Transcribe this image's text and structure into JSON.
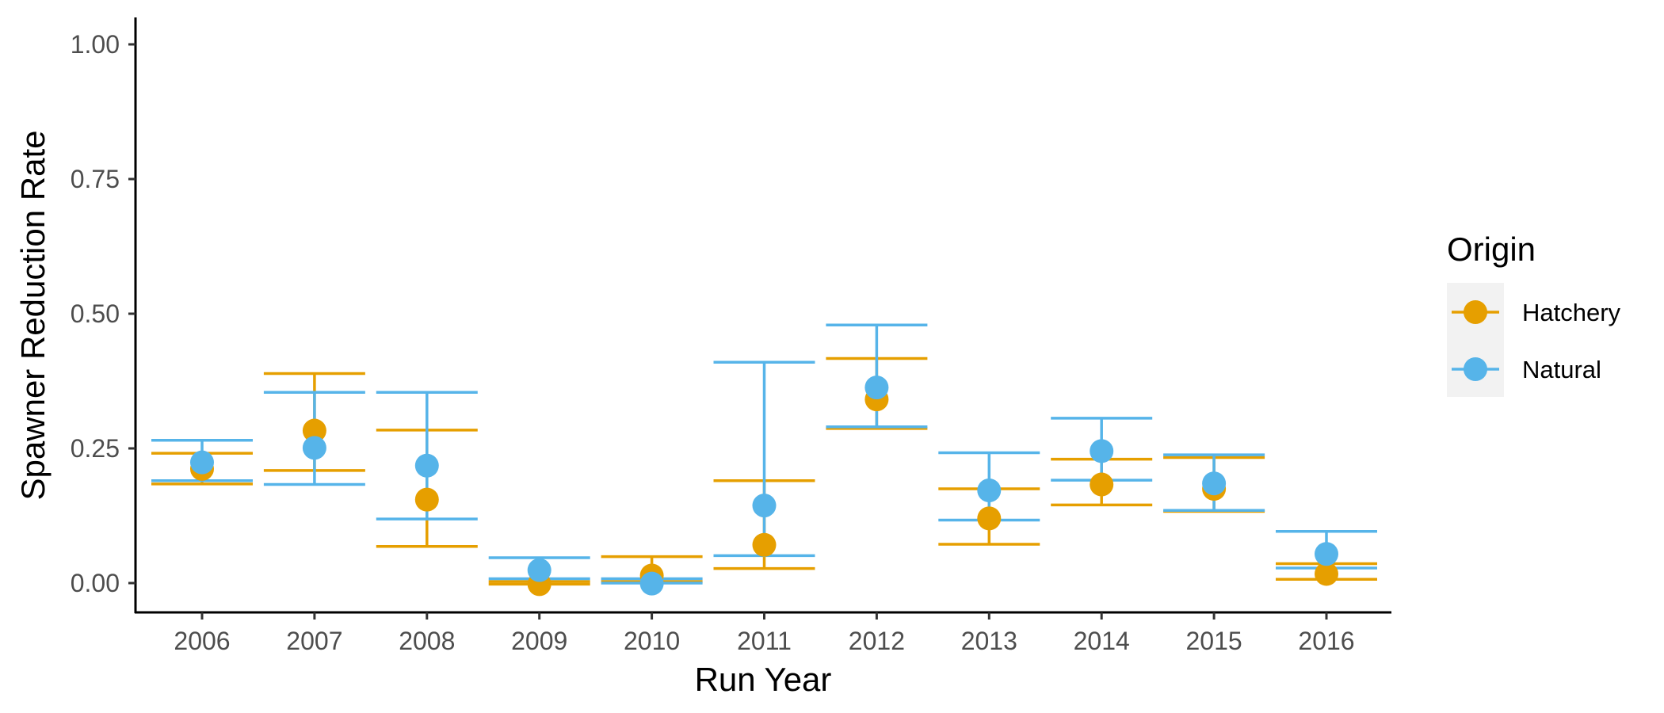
{
  "chart_data": {
    "type": "scatter",
    "title": "",
    "xlabel": "Run Year",
    "ylabel": "Spawner Reduction Rate",
    "categories": [
      "2006",
      "2007",
      "2008",
      "2009",
      "2010",
      "2011",
      "2012",
      "2013",
      "2014",
      "2015",
      "2016"
    ],
    "ylim": [
      -0.05,
      1.05
    ],
    "yticks": [
      0.0,
      0.25,
      0.5,
      0.75,
      1.0
    ],
    "ytick_labels": [
      "0.00",
      "0.25",
      "0.50",
      "0.75",
      "1.00"
    ],
    "grid": false,
    "error_bars": true,
    "legend": {
      "title": "Origin",
      "position": "right"
    },
    "series": [
      {
        "name": "Hatchery",
        "color": "#E69F00",
        "values": [
          0.212,
          0.283,
          0.155,
          -0.002,
          0.014,
          0.071,
          0.341,
          0.12,
          0.183,
          0.175,
          0.017
        ],
        "lower": [
          0.184,
          0.209,
          0.068,
          -0.002,
          0.003,
          0.027,
          0.287,
          0.072,
          0.145,
          0.133,
          0.007
        ],
        "upper": [
          0.241,
          0.389,
          0.284,
          0.003,
          0.049,
          0.19,
          0.417,
          0.175,
          0.23,
          0.233,
          0.036
        ]
      },
      {
        "name": "Natural",
        "color": "#56B4E9",
        "values": [
          0.224,
          0.251,
          0.218,
          0.024,
          -0.001,
          0.144,
          0.363,
          0.172,
          0.245,
          0.185,
          0.054
        ],
        "lower": [
          0.19,
          0.183,
          0.119,
          0.008,
          0.0,
          0.051,
          0.29,
          0.117,
          0.191,
          0.135,
          0.028
        ],
        "upper": [
          0.265,
          0.354,
          0.354,
          0.047,
          0.008,
          0.41,
          0.479,
          0.242,
          0.306,
          0.238,
          0.096
        ]
      }
    ]
  }
}
